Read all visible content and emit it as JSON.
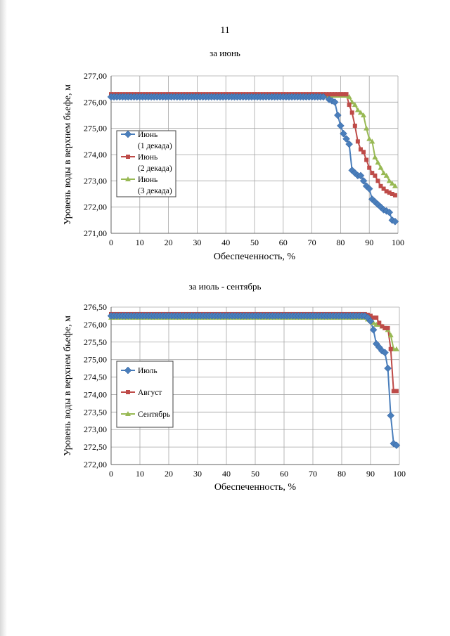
{
  "page": {
    "number": "11"
  },
  "colors": {
    "blue": "#4a7ebb",
    "red": "#be4b48",
    "green": "#98b954",
    "grid": "#a6a6a6"
  },
  "charts": [
    {
      "title": "за июнь",
      "ylabel": "Уровень воды в верхнем бьефе, м",
      "xlabel": "Обеспеченность, %",
      "xticks": [
        "0",
        "10",
        "20",
        "30",
        "40",
        "50",
        "60",
        "70",
        "80",
        "90",
        "100"
      ],
      "yticks": [
        "271,00",
        "272,00",
        "273,00",
        "274,00",
        "275,00",
        "276,00",
        "277,00"
      ],
      "legend": [
        {
          "lines": [
            "Июнь",
            "(1 декада)"
          ]
        },
        {
          "lines": [
            "Июнь",
            "(2 декада)"
          ]
        },
        {
          "lines": [
            "Июнь",
            "(3 декада)"
          ]
        }
      ]
    },
    {
      "title": "за июль - сентябрь",
      "ylabel": "Уровень воды в верхнем бьефе, м",
      "xlabel": "Обеспеченность, %",
      "xticks": [
        "0",
        "10",
        "20",
        "30",
        "40",
        "50",
        "60",
        "70",
        "80",
        "90",
        "100"
      ],
      "yticks": [
        "272,00",
        "272,50",
        "273,00",
        "273,50",
        "274,00",
        "274,50",
        "275,00",
        "275,50",
        "276,00",
        "276,50"
      ],
      "legend": [
        {
          "lines": [
            "Июль"
          ]
        },
        {
          "lines": [
            "Август"
          ]
        },
        {
          "lines": [
            "Сентябрь"
          ]
        }
      ]
    }
  ],
  "chart_data": [
    {
      "type": "line",
      "title": "за июнь",
      "xlabel": "Обеспеченность, %",
      "ylabel": "Уровень воды в верхнем бьефе, м",
      "xlim": [
        0,
        100
      ],
      "ylim": [
        271,
        277
      ],
      "grid": true,
      "legend_position": "left",
      "series": [
        {
          "name": "Июнь (1 декада)",
          "color": "#4a7ebb",
          "marker": "diamond",
          "x": [
            0,
            74.5,
            76,
            77,
            78,
            79,
            80,
            81,
            82,
            83,
            84,
            85,
            86,
            87,
            88,
            89,
            90,
            91,
            92,
            93,
            94,
            95,
            96,
            97,
            98,
            99
          ],
          "y": [
            276.2,
            276.2,
            276.1,
            276.05,
            276.0,
            275.5,
            275.1,
            274.8,
            274.6,
            274.4,
            273.4,
            273.3,
            273.2,
            273.2,
            273.0,
            272.8,
            272.7,
            272.3,
            272.2,
            272.1,
            272.0,
            271.9,
            271.85,
            271.8,
            271.5,
            271.45
          ]
        },
        {
          "name": "Июнь (2 декада)",
          "color": "#be4b48",
          "marker": "square",
          "x": [
            0,
            82,
            83,
            84,
            85,
            86,
            87,
            88,
            89,
            90,
            91,
            92,
            93,
            94,
            95,
            96,
            97,
            98,
            99
          ],
          "y": [
            276.3,
            276.3,
            275.9,
            275.6,
            275.1,
            274.5,
            274.2,
            274.1,
            273.8,
            273.5,
            273.3,
            273.2,
            273.0,
            272.8,
            272.7,
            272.6,
            272.55,
            272.5,
            272.45
          ]
        },
        {
          "name": "Июнь (3 декада)",
          "color": "#98b954",
          "marker": "triangle",
          "x": [
            0,
            82,
            83,
            84,
            85,
            86,
            87,
            88,
            89,
            90,
            91,
            92,
            93,
            94,
            95,
            96,
            97,
            98,
            99
          ],
          "y": [
            276.25,
            276.25,
            276.2,
            276.0,
            275.9,
            275.7,
            275.6,
            275.5,
            275.0,
            274.6,
            274.5,
            273.9,
            273.7,
            273.5,
            273.3,
            273.2,
            273.0,
            272.9,
            272.8
          ]
        }
      ]
    },
    {
      "type": "line",
      "title": "за июль - сентябрь",
      "xlabel": "Обеспеченность, %",
      "ylabel": "Уровень воды в верхнем бьефе, м",
      "xlim": [
        0,
        100
      ],
      "ylim": [
        272,
        276.5
      ],
      "grid": true,
      "legend_position": "left",
      "series": [
        {
          "name": "Июль",
          "color": "#4a7ebb",
          "marker": "diamond",
          "x": [
            0,
            88,
            89,
            90,
            91,
            92,
            93,
            94,
            95,
            96,
            97,
            98,
            99
          ],
          "y": [
            276.25,
            276.25,
            276.2,
            276.1,
            275.85,
            275.45,
            275.35,
            275.25,
            275.2,
            274.75,
            273.4,
            272.6,
            272.55
          ]
        },
        {
          "name": "Август",
          "color": "#be4b48",
          "marker": "square",
          "x": [
            0,
            88,
            89,
            90,
            91,
            92,
            93,
            94,
            95,
            96,
            97,
            98,
            99
          ],
          "y": [
            276.3,
            276.3,
            276.28,
            276.25,
            276.2,
            276.2,
            276.05,
            275.95,
            275.9,
            275.9,
            275.3,
            274.1,
            274.1
          ]
        },
        {
          "name": "Сентябрь",
          "color": "#98b954",
          "marker": "triangle",
          "x": [
            0,
            88,
            89,
            90,
            91,
            92,
            93,
            94,
            95,
            96,
            97,
            98,
            99
          ],
          "y": [
            276.2,
            276.2,
            276.15,
            276.1,
            276.05,
            276.0,
            276.0,
            275.95,
            275.9,
            275.85,
            275.7,
            275.3,
            275.3
          ]
        }
      ]
    }
  ]
}
